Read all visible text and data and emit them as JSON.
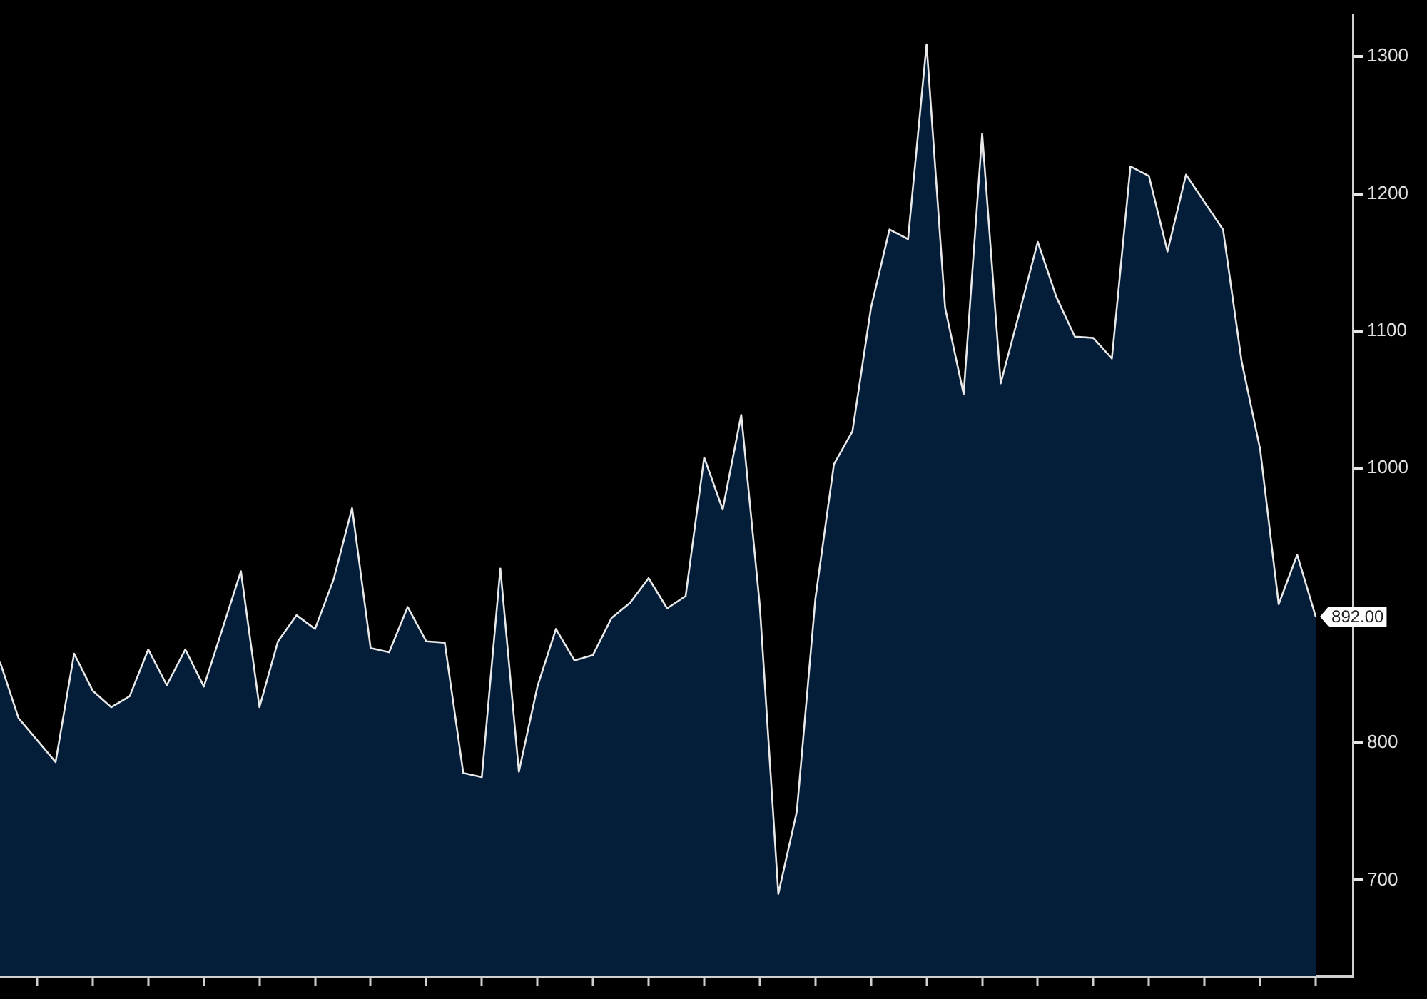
{
  "chart_data": {
    "type": "area",
    "tick_labels": "y",
    "categories": [
      null,
      null,
      null,
      null,
      null,
      null,
      null,
      null,
      null,
      null,
      null,
      null,
      null,
      null,
      null,
      null,
      null,
      null,
      null,
      null,
      null,
      null,
      null,
      null,
      null,
      null,
      null,
      null,
      null,
      null,
      null,
      null,
      null,
      null,
      null,
      null,
      null,
      null,
      null,
      null,
      null,
      null,
      null,
      null,
      null,
      null,
      null,
      null,
      null,
      null,
      null,
      null,
      null,
      null,
      null,
      null,
      null,
      null,
      null,
      null,
      null,
      null,
      null,
      null,
      null,
      null,
      null,
      null,
      null,
      null,
      null,
      null
    ],
    "values": [
      859,
      818,
      802,
      786,
      865,
      838,
      826,
      834,
      868,
      842,
      868,
      841,
      883,
      925,
      826,
      874,
      893,
      883,
      919,
      971,
      869,
      866,
      899,
      874,
      873,
      778,
      775,
      927,
      779,
      841,
      883,
      860,
      864,
      891,
      902,
      920,
      898,
      907,
      1008,
      970,
      1039,
      900,
      690,
      750,
      905,
      1003,
      1027,
      1117,
      1174,
      1167,
      1309,
      1117,
      1054,
      1244,
      1062,
      1113,
      1165,
      1125,
      1096,
      1095,
      1080,
      1220,
      1213,
      1158,
      1214,
      1194,
      1174,
      1078,
      1014,
      901,
      937,
      892
    ],
    "value_labels": [
      null,
      null,
      null,
      null,
      null,
      null,
      null,
      null,
      null,
      null,
      null,
      null,
      null,
      null,
      null,
      null,
      null,
      null,
      null,
      null,
      null,
      null,
      null,
      null,
      null,
      null,
      null,
      null,
      null,
      null,
      null,
      null,
      null,
      null,
      null,
      null,
      null,
      null,
      null,
      null,
      null,
      null,
      null,
      null,
      null,
      null,
      null,
      null,
      null,
      null,
      null,
      null,
      null,
      null,
      null,
      null,
      null,
      null,
      null,
      null,
      null,
      null,
      null,
      null,
      null,
      null,
      null,
      null,
      null,
      null,
      null,
      "892.00"
    ],
    "color": "#041e3a",
    "ylim": [
      630,
      1330
    ],
    "yticks": [
      700,
      800,
      1000,
      1100,
      1200,
      1300
    ]
  }
}
